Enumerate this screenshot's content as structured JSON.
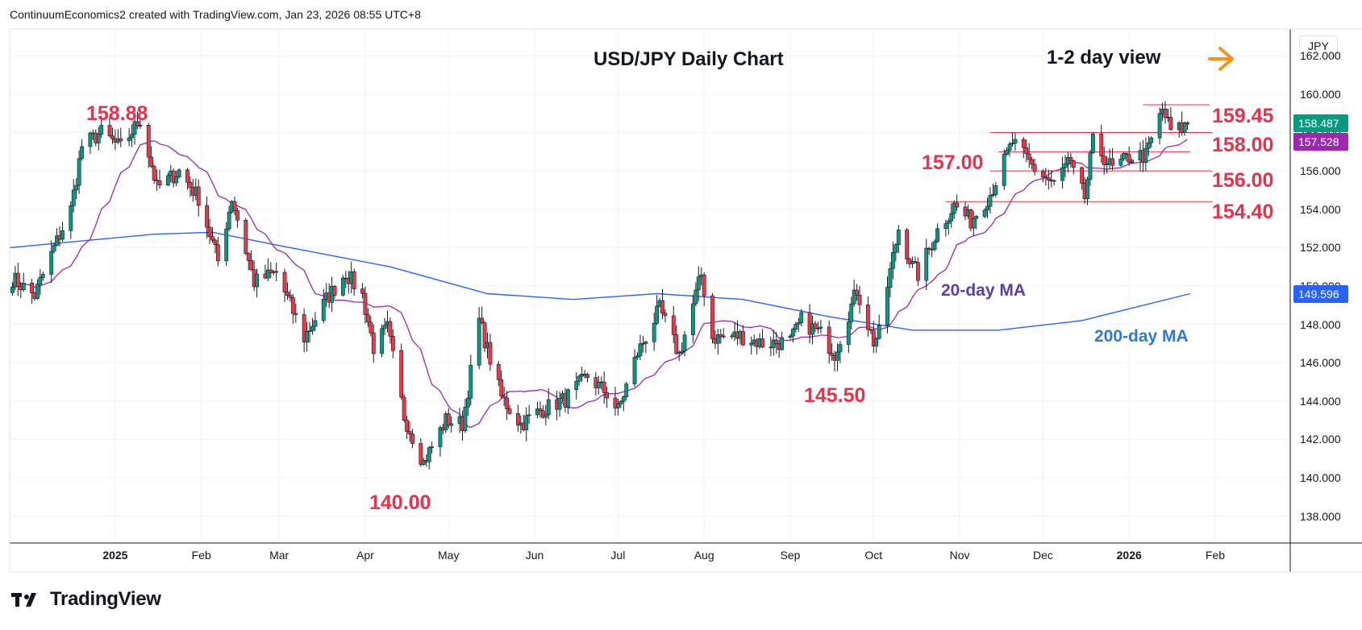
{
  "header": "ContinuumEconomics2 created with TradingView.com, Jan 23, 2026 08:55 UTC+8",
  "logo_text": "TradingView",
  "currency": "JPY",
  "chart_data": {
    "type": "candlestick",
    "title": "USD/JPY Daily Chart",
    "subtitle": "1-2 day view",
    "outlook_arrow": "right",
    "ylim": [
      136.6,
      163.4
    ],
    "xlim": [
      "2024-11-24",
      "2026-02-28"
    ],
    "y_ticks": [
      138,
      140,
      142,
      144,
      146,
      148,
      150,
      152,
      154,
      156,
      158,
      160,
      162
    ],
    "y_tick_labels": [
      "138.000",
      "140.000",
      "142.000",
      "144.000",
      "146.000",
      "148.000",
      "150.000",
      "152.000",
      "154.000",
      "156.000",
      "158.000",
      "160.000",
      "162.000"
    ],
    "x_ticks": [
      {
        "date": "2025-01-01",
        "label": "2025",
        "bold": true
      },
      {
        "date": "2025-02-01",
        "label": "Feb"
      },
      {
        "date": "2025-03-01",
        "label": "Mar"
      },
      {
        "date": "2025-04-01",
        "label": "Apr"
      },
      {
        "date": "2025-05-01",
        "label": "May"
      },
      {
        "date": "2025-06-01",
        "label": "Jun"
      },
      {
        "date": "2025-07-01",
        "label": "Jul"
      },
      {
        "date": "2025-08-01",
        "label": "Aug"
      },
      {
        "date": "2025-09-01",
        "label": "Sep"
      },
      {
        "date": "2025-10-01",
        "label": "Oct"
      },
      {
        "date": "2025-11-01",
        "label": "Nov"
      },
      {
        "date": "2025-12-01",
        "label": "Dec"
      },
      {
        "date": "2026-01-01",
        "label": "2026",
        "bold": true
      },
      {
        "date": "2026-02-01",
        "label": "Feb"
      }
    ],
    "grid": true,
    "last_price": 158.487,
    "ma20_last": 157.528,
    "ma200_last": 149.596,
    "price_waypoints": [
      [
        "2024-11-25",
        150.4
      ],
      [
        "2024-12-03",
        149.5
      ],
      [
        "2024-12-10",
        152.0
      ],
      [
        "2024-12-16",
        154.0
      ],
      [
        "2024-12-20",
        157.3
      ],
      [
        "2024-12-27",
        158.0
      ],
      [
        "2025-01-03",
        157.2
      ],
      [
        "2025-01-10",
        158.7
      ],
      [
        "2025-01-16",
        155.1
      ],
      [
        "2025-01-24",
        156.0
      ],
      [
        "2025-01-31",
        154.6
      ],
      [
        "2025-02-07",
        151.3
      ],
      [
        "2025-02-12",
        154.6
      ],
      [
        "2025-02-20",
        150.2
      ],
      [
        "2025-02-28",
        150.7
      ],
      [
        "2025-03-10",
        147.3
      ],
      [
        "2025-03-18",
        149.3
      ],
      [
        "2025-03-25",
        150.7
      ],
      [
        "2025-03-31",
        149.5
      ],
      [
        "2025-04-04",
        146.8
      ],
      [
        "2025-04-09",
        147.8
      ],
      [
        "2025-04-15",
        143.2
      ],
      [
        "2025-04-22",
        140.8
      ],
      [
        "2025-04-30",
        143.0
      ],
      [
        "2025-05-06",
        142.8
      ],
      [
        "2025-05-12",
        148.2
      ],
      [
        "2025-05-20",
        144.2
      ],
      [
        "2025-05-27",
        142.8
      ],
      [
        "2025-06-03",
        143.5
      ],
      [
        "2025-06-12",
        144.1
      ],
      [
        "2025-06-20",
        145.3
      ],
      [
        "2025-06-27",
        144.4
      ],
      [
        "2025-07-01",
        143.5
      ],
      [
        "2025-07-08",
        146.5
      ],
      [
        "2025-07-16",
        148.8
      ],
      [
        "2025-07-23",
        146.4
      ],
      [
        "2025-07-31",
        150.6
      ],
      [
        "2025-08-04",
        147.3
      ],
      [
        "2025-08-14",
        147.4
      ],
      [
        "2025-08-22",
        147.0
      ],
      [
        "2025-09-01",
        147.1
      ],
      [
        "2025-09-05",
        148.2
      ],
      [
        "2025-09-12",
        147.5
      ],
      [
        "2025-09-17",
        146.5
      ],
      [
        "2025-09-25",
        149.8
      ],
      [
        "2025-10-01",
        147.1
      ],
      [
        "2025-10-03",
        147.5
      ],
      [
        "2025-10-06",
        150.0
      ],
      [
        "2025-10-10",
        153.0
      ],
      [
        "2025-10-15",
        151.0
      ],
      [
        "2025-10-17",
        150.6
      ],
      [
        "2025-10-24",
        152.9
      ],
      [
        "2025-10-30",
        154.2
      ],
      [
        "2025-11-05",
        153.4
      ],
      [
        "2025-11-12",
        154.8
      ],
      [
        "2025-11-20",
        157.5
      ],
      [
        "2025-11-28",
        156.1
      ],
      [
        "2025-12-05",
        155.3
      ],
      [
        "2025-12-10",
        156.5
      ],
      [
        "2025-12-16",
        154.6
      ],
      [
        "2025-12-19",
        157.5
      ],
      [
        "2025-12-26",
        156.1
      ],
      [
        "2026-01-02",
        156.8
      ],
      [
        "2026-01-07",
        156.8
      ],
      [
        "2026-01-13",
        159.2
      ],
      [
        "2026-01-16",
        158.1
      ],
      [
        "2026-01-20",
        158.2
      ],
      [
        "2026-01-22",
        158.5
      ]
    ],
    "series": [
      {
        "name": "20-day MA",
        "color": "#9c27b0",
        "label_color": "#5b3ea8",
        "window": 20
      },
      {
        "name": "200-day MA",
        "color": "#2962ff",
        "label_color": "#2f7ad6",
        "points": [
          [
            "2024-11-24",
            152.0
          ],
          [
            "2025-01-15",
            152.7
          ],
          [
            "2025-02-05",
            152.8
          ],
          [
            "2025-03-05",
            152.0
          ],
          [
            "2025-04-10",
            151.0
          ],
          [
            "2025-05-15",
            149.6
          ],
          [
            "2025-06-15",
            149.3
          ],
          [
            "2025-07-15",
            149.6
          ],
          [
            "2025-08-15",
            149.3
          ],
          [
            "2025-09-15",
            148.4
          ],
          [
            "2025-10-15",
            147.7
          ],
          [
            "2025-11-15",
            147.7
          ],
          [
            "2025-12-15",
            148.2
          ],
          [
            "2026-01-23",
            149.6
          ]
        ]
      }
    ],
    "annotations": [
      {
        "text": "158.88",
        "kind": "peak"
      },
      {
        "text": "140.00",
        "kind": "low"
      },
      {
        "text": "145.50",
        "kind": "low"
      },
      {
        "text": "157.00",
        "kind": "level",
        "y": 157.0
      },
      {
        "text": "159.45",
        "kind": "level",
        "y": 159.45
      },
      {
        "text": "158.00",
        "kind": "level",
        "y": 158.0
      },
      {
        "text": "156.00",
        "kind": "level",
        "y": 156.0
      },
      {
        "text": "154.40",
        "kind": "level",
        "y": 154.4
      }
    ],
    "ma_labels": [
      "20-day MA",
      "200-day MA"
    ],
    "colors": {
      "up": "#089981",
      "down": "#f23645",
      "wick": "#131722",
      "level": "#e8324b",
      "arrow": "#f7931a",
      "grid": "#f0f3fa"
    }
  }
}
